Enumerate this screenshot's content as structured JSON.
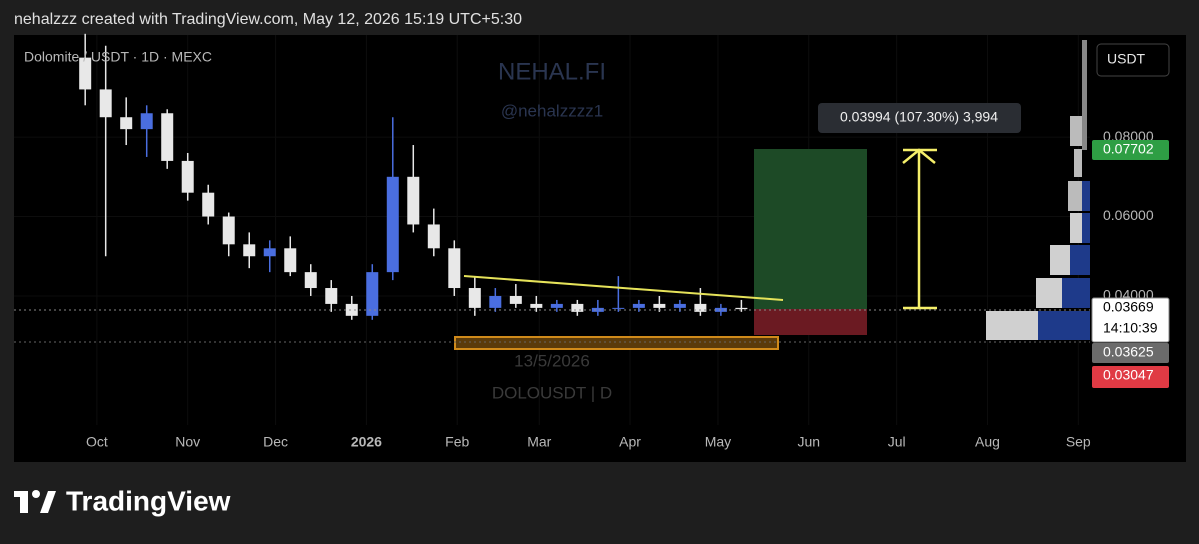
{
  "header": {
    "text": "nehalzzz created with TradingView.com, May 12, 2026 15:19 UTC+5:30"
  },
  "footer": {
    "brand": "TradingView"
  },
  "chart_data": {
    "type": "candlestick",
    "title": "Dolomite / USDT · 1D · MEXC",
    "currency": "USDT",
    "watermark": [
      "NEHAL.FI",
      "@nehalzzzz1",
      "13/5/2026",
      "DOLOUSDT | D"
    ],
    "measure_label": "0.03994 (107.30%) 3,994",
    "countdown": "14:10:39",
    "x": [
      -4,
      3,
      10,
      17,
      24,
      31,
      38,
      45,
      52,
      59,
      66,
      73,
      80,
      87,
      94,
      101,
      108,
      115,
      122,
      129,
      136,
      143,
      150,
      157,
      164,
      171,
      178,
      185,
      192,
      199,
      206,
      213,
      220
    ],
    "open": [
      0.1,
      0.092,
      0.085,
      0.082,
      0.086,
      0.074,
      0.066,
      0.06,
      0.053,
      0.05,
      0.052,
      0.046,
      0.042,
      0.038,
      0.035,
      0.046,
      0.07,
      0.058,
      0.052,
      0.042,
      0.037,
      0.04,
      0.038,
      0.037,
      0.038,
      0.036,
      0.037,
      0.037,
      0.038,
      0.037,
      0.038,
      0.036,
      0.037
    ],
    "high": [
      0.106,
      0.103,
      0.09,
      0.088,
      0.087,
      0.076,
      0.068,
      0.061,
      0.056,
      0.054,
      0.055,
      0.048,
      0.044,
      0.04,
      0.048,
      0.085,
      0.078,
      0.062,
      0.054,
      0.045,
      0.042,
      0.043,
      0.04,
      0.039,
      0.039,
      0.039,
      0.045,
      0.039,
      0.04,
      0.039,
      0.042,
      0.038,
      0.039
    ],
    "low": [
      0.088,
      0.05,
      0.078,
      0.075,
      0.072,
      0.064,
      0.058,
      0.05,
      0.047,
      0.046,
      0.045,
      0.04,
      0.036,
      0.034,
      0.034,
      0.044,
      0.056,
      0.05,
      0.04,
      0.035,
      0.036,
      0.037,
      0.036,
      0.036,
      0.035,
      0.035,
      0.036,
      0.036,
      0.036,
      0.036,
      0.035,
      0.035,
      0.036
    ],
    "close": [
      0.092,
      0.085,
      0.082,
      0.086,
      0.074,
      0.066,
      0.06,
      0.053,
      0.05,
      0.052,
      0.046,
      0.042,
      0.038,
      0.035,
      0.046,
      0.07,
      0.058,
      0.052,
      0.042,
      0.037,
      0.04,
      0.038,
      0.037,
      0.038,
      0.036,
      0.037,
      0.037,
      0.038,
      0.037,
      0.038,
      0.036,
      0.037,
      0.03669
    ],
    "up_color": "#4a6ee0",
    "down_color": "#e8e8e8",
    "xlim": [
      -28.3,
      339
    ],
    "xticks": [
      {
        "value": 0,
        "label": "Oct"
      },
      {
        "value": 31,
        "label": "Nov"
      },
      {
        "value": 61,
        "label": "Dec"
      },
      {
        "value": 92,
        "label": "2026"
      },
      {
        "value": 123,
        "label": "Feb"
      },
      {
        "value": 151,
        "label": "Mar"
      },
      {
        "value": 182,
        "label": "Apr"
      },
      {
        "value": 212,
        "label": "May"
      },
      {
        "value": 243,
        "label": "Jun"
      },
      {
        "value": 273,
        "label": "Jul"
      },
      {
        "value": 304,
        "label": "Aug"
      },
      {
        "value": 335,
        "label": "Sep"
      }
    ],
    "ylim": [
      -0.0018,
      0.1057
    ],
    "yticks": [
      {
        "value": 0.04,
        "label": "0.04000"
      },
      {
        "value": 0.06,
        "label": "0.06000"
      },
      {
        "value": 0.08,
        "label": "0.08000"
      }
    ],
    "price_labels": [
      {
        "value": 0.07702,
        "label": "0.07702",
        "color": "#2e9e44"
      },
      {
        "value": 0.03669,
        "label": "0.03669",
        "color": "#ffffff"
      },
      {
        "value": 0.03625,
        "label": "0.03625",
        "color": "#6b6b6b"
      },
      {
        "value": 0.03047,
        "label": "0.03047",
        "color": "#e03a44"
      }
    ]
  }
}
